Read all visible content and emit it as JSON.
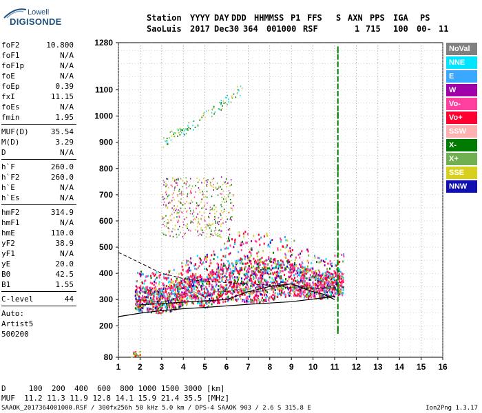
{
  "logo": {
    "line1": "Lowell",
    "line2": "DIGISONDE"
  },
  "header": {
    "row1": [
      "Station",
      "YYYY",
      "DAY",
      "DDD",
      "HHMMSS",
      "P1",
      "FFS",
      "S",
      "AXN",
      "PPS",
      "IGA",
      "PS"
    ],
    "row2": [
      "SaoLuis",
      "2017",
      "Dec30",
      "364",
      "001000",
      "RSF",
      "1",
      "715",
      "100",
      "00-",
      "11"
    ]
  },
  "params": {
    "group1": [
      {
        "label": "foF2",
        "value": "10.800"
      },
      {
        "label": "foF1",
        "value": "N/A"
      },
      {
        "label": "foF1p",
        "value": "N/A"
      },
      {
        "label": "foE",
        "value": "N/A"
      },
      {
        "label": "foEp",
        "value": "0.39"
      },
      {
        "label": "fxI",
        "value": "11.15"
      },
      {
        "label": "foEs",
        "value": "N/A"
      },
      {
        "label": "fmin",
        "value": "1.95"
      }
    ],
    "group2": [
      {
        "label": "MUF(D)",
        "value": "35.54"
      },
      {
        "label": "M(D)",
        "value": "3.29"
      },
      {
        "label": "D",
        "value": "N/A"
      }
    ],
    "group3": [
      {
        "label": "h`F",
        "value": "260.0"
      },
      {
        "label": "h`F2",
        "value": "260.0"
      },
      {
        "label": "h`E",
        "value": "N/A"
      },
      {
        "label": "h`Es",
        "value": "N/A"
      }
    ],
    "group4": [
      {
        "label": "hmF2",
        "value": "314.9"
      },
      {
        "label": "hmF1",
        "value": "N/A"
      },
      {
        "label": "hmE",
        "value": "110.0"
      },
      {
        "label": "yF2",
        "value": "38.9"
      },
      {
        "label": "yF1",
        "value": "N/A"
      },
      {
        "label": "yE",
        "value": "20.0"
      },
      {
        "label": "B0",
        "value": "42.5"
      },
      {
        "label": "B1",
        "value": "1.55"
      }
    ],
    "group5": [
      {
        "label": "C-level",
        "value": "44"
      }
    ],
    "auto": [
      "Auto:",
      "Artist5",
      "500200"
    ]
  },
  "legend": [
    {
      "label": "NoVal",
      "color": "#808080"
    },
    {
      "label": "NNE",
      "color": "#00e5ff"
    },
    {
      "label": "E",
      "color": "#3aa8ff"
    },
    {
      "label": "W",
      "color": "#a000a8"
    },
    {
      "label": "Vo-",
      "color": "#ff40a0"
    },
    {
      "label": "Vo+",
      "color": "#ff0030"
    },
    {
      "label": "SSW",
      "color": "#ffb0b0"
    },
    {
      "label": "X-",
      "color": "#007a00"
    },
    {
      "label": "X+",
      "color": "#70b050"
    },
    {
      "label": "SSE",
      "color": "#d8d020"
    },
    {
      "label": "NNW",
      "color": "#1010b0"
    }
  ],
  "bottom": {
    "d_line": "D     100  200  400  600  800 1000 1500 3000 [km]",
    "muf_line": "MUF  11.2 11.3 11.9 12.8 14.1 15.9 21.4 35.5 [MHz]",
    "file_line": "SAAOK_2017364001000.RSF / 300fx256h 50 kHz 5.0 km / DPS-4 SAAOK 903 / 2.6 S 315.8 E",
    "version": "Ion2Png 1.3.17"
  },
  "chart_data": {
    "type": "scatter",
    "xlim": [
      1,
      16
    ],
    "ylim": [
      80,
      1280
    ],
    "x_ticks": [
      1,
      2,
      3,
      4,
      5,
      6,
      7,
      8,
      9,
      10,
      11,
      12,
      13,
      14,
      15,
      16
    ],
    "y_ticks": [
      80,
      200,
      300,
      400,
      500,
      600,
      700,
      800,
      900,
      1000,
      1100,
      1280
    ],
    "grid": true,
    "series": [
      {
        "name": "F2 trace (O)",
        "x": [
          1.8,
          2.5,
          3.0,
          3.5,
          4.0,
          4.5,
          5.0,
          5.5,
          6.0,
          6.5,
          7.0,
          7.5,
          8.0,
          8.5,
          9.0,
          9.5,
          10.0,
          10.5,
          11.0,
          11.15
        ],
        "y": [
          300,
          295,
          290,
          300,
          320,
          330,
          310,
          330,
          330,
          340,
          330,
          330,
          340,
          350,
          360,
          350,
          345,
          345,
          355,
          360
        ]
      },
      {
        "name": "Second hop",
        "x": [
          3.0,
          3.5,
          4.0,
          4.5,
          5.0,
          5.5,
          6.0
        ],
        "y": [
          600,
          610,
          590,
          600,
          620,
          640,
          640
        ]
      },
      {
        "name": "Third hop",
        "x": [
          3.0,
          3.5,
          4.0,
          4.5,
          5.0,
          5.5,
          6.0,
          6.5
        ],
        "y": [
          900,
          930,
          950,
          970,
          1000,
          1030,
          1060,
          1100
        ]
      },
      {
        "name": "fxI marker",
        "x": [
          11.15,
          11.15,
          11.15,
          11.15,
          11.15,
          11.15,
          11.15
        ],
        "y": [
          180,
          350,
          500,
          650,
          800,
          1000,
          1250
        ]
      }
    ],
    "profile_line": {
      "x": [
        1,
        2,
        3,
        4,
        5,
        6,
        7,
        8,
        9,
        10,
        11
      ],
      "y": [
        235,
        248,
        258,
        265,
        270,
        276,
        282,
        287,
        292,
        302,
        312
      ]
    },
    "dashed_line": {
      "x": [
        1,
        1.5,
        2,
        2.5,
        3,
        3.5,
        4,
        5,
        6,
        7,
        8,
        9,
        10,
        11
      ],
      "y": [
        480,
        460,
        440,
        420,
        400,
        390,
        380,
        370,
        365,
        360,
        355,
        345,
        340,
        345
      ]
    },
    "profile_curve": {
      "x": [
        2.0,
        4.0,
        6.0,
        7.0,
        8.0,
        9.0,
        10.0,
        10.5,
        11.0
      ],
      "y": [
        280,
        290,
        300,
        330,
        350,
        360,
        330,
        320,
        300
      ]
    },
    "title": "",
    "xlabel": "",
    "ylabel": ""
  }
}
